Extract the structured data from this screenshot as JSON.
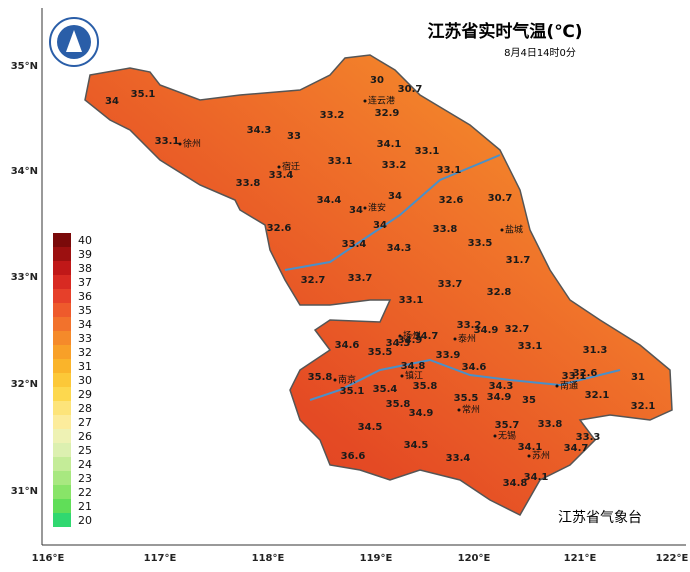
{
  "header": {
    "title": "江苏省实时气温(℃)",
    "time": "8月4日14时0分"
  },
  "footer": "江苏省气象台",
  "lat_ticks": [
    "35°N",
    "34°N",
    "33°N",
    "32°N",
    "31°N"
  ],
  "lon_ticks": [
    "116°E",
    "117°E",
    "118°E",
    "119°E",
    "120°E",
    "121°E",
    "122°E"
  ],
  "legend": [
    {
      "value": 40,
      "color": "#7a0a0a"
    },
    {
      "value": 39,
      "color": "#9c1010"
    },
    {
      "value": 38,
      "color": "#c01818"
    },
    {
      "value": 37,
      "color": "#d82a22"
    },
    {
      "value": 36,
      "color": "#e6402a"
    },
    {
      "value": 35,
      "color": "#ee5a2c"
    },
    {
      "value": 34,
      "color": "#f2722c"
    },
    {
      "value": 33,
      "color": "#f58a2a"
    },
    {
      "value": 32,
      "color": "#f8a028"
    },
    {
      "value": 31,
      "color": "#fab42a"
    },
    {
      "value": 30,
      "color": "#fcc838"
    },
    {
      "value": 29,
      "color": "#fdd84e"
    },
    {
      "value": 28,
      "color": "#fde47a"
    },
    {
      "value": 27,
      "color": "#fcec9c"
    },
    {
      "value": 26,
      "color": "#eef2b4"
    },
    {
      "value": 25,
      "color": "#dcf0b0"
    },
    {
      "value": 24,
      "color": "#c4ec98"
    },
    {
      "value": 23,
      "color": "#a8e880"
    },
    {
      "value": 22,
      "color": "#88e468"
    },
    {
      "value": 21,
      "color": "#60de58"
    },
    {
      "value": 20,
      "color": "#30d870"
    }
  ],
  "cities": [
    "连云港",
    "徐州",
    "宿迁",
    "淮安",
    "盐城",
    "扬州",
    "泰州",
    "南京",
    "镇江",
    "常州",
    "南通",
    "无锡",
    "苏州"
  ],
  "stations": [
    34.0,
    35.1,
    30.0,
    30.7,
    33.1,
    34.3,
    33.0,
    33.2,
    32.9,
    34.1,
    33.1,
    33.1,
    33.2,
    33.4,
    33.8,
    33.1,
    34.4,
    34.0,
    34.0,
    34.0,
    32.6,
    30.7,
    32.6,
    33.4,
    34.3,
    33.8,
    33.5,
    31.7,
    32.7,
    33.7,
    33.7,
    32.8,
    33.1,
    33.2,
    34.9,
    32.7,
    34.6,
    35.5,
    34.3,
    34.7,
    34.9,
    33.9,
    33.1,
    31.3,
    35.8,
    35.1,
    34.8,
    34.6,
    35.4,
    35.8,
    34.3,
    34.9,
    35.0,
    33.1,
    32.6,
    31.0,
    35.5,
    32.1,
    35.8,
    34.9,
    32.1,
    34.5,
    35.7,
    33.8,
    33.3,
    34.5,
    34.1,
    34.7,
    36.6,
    33.4,
    34.1,
    34.8
  ]
}
